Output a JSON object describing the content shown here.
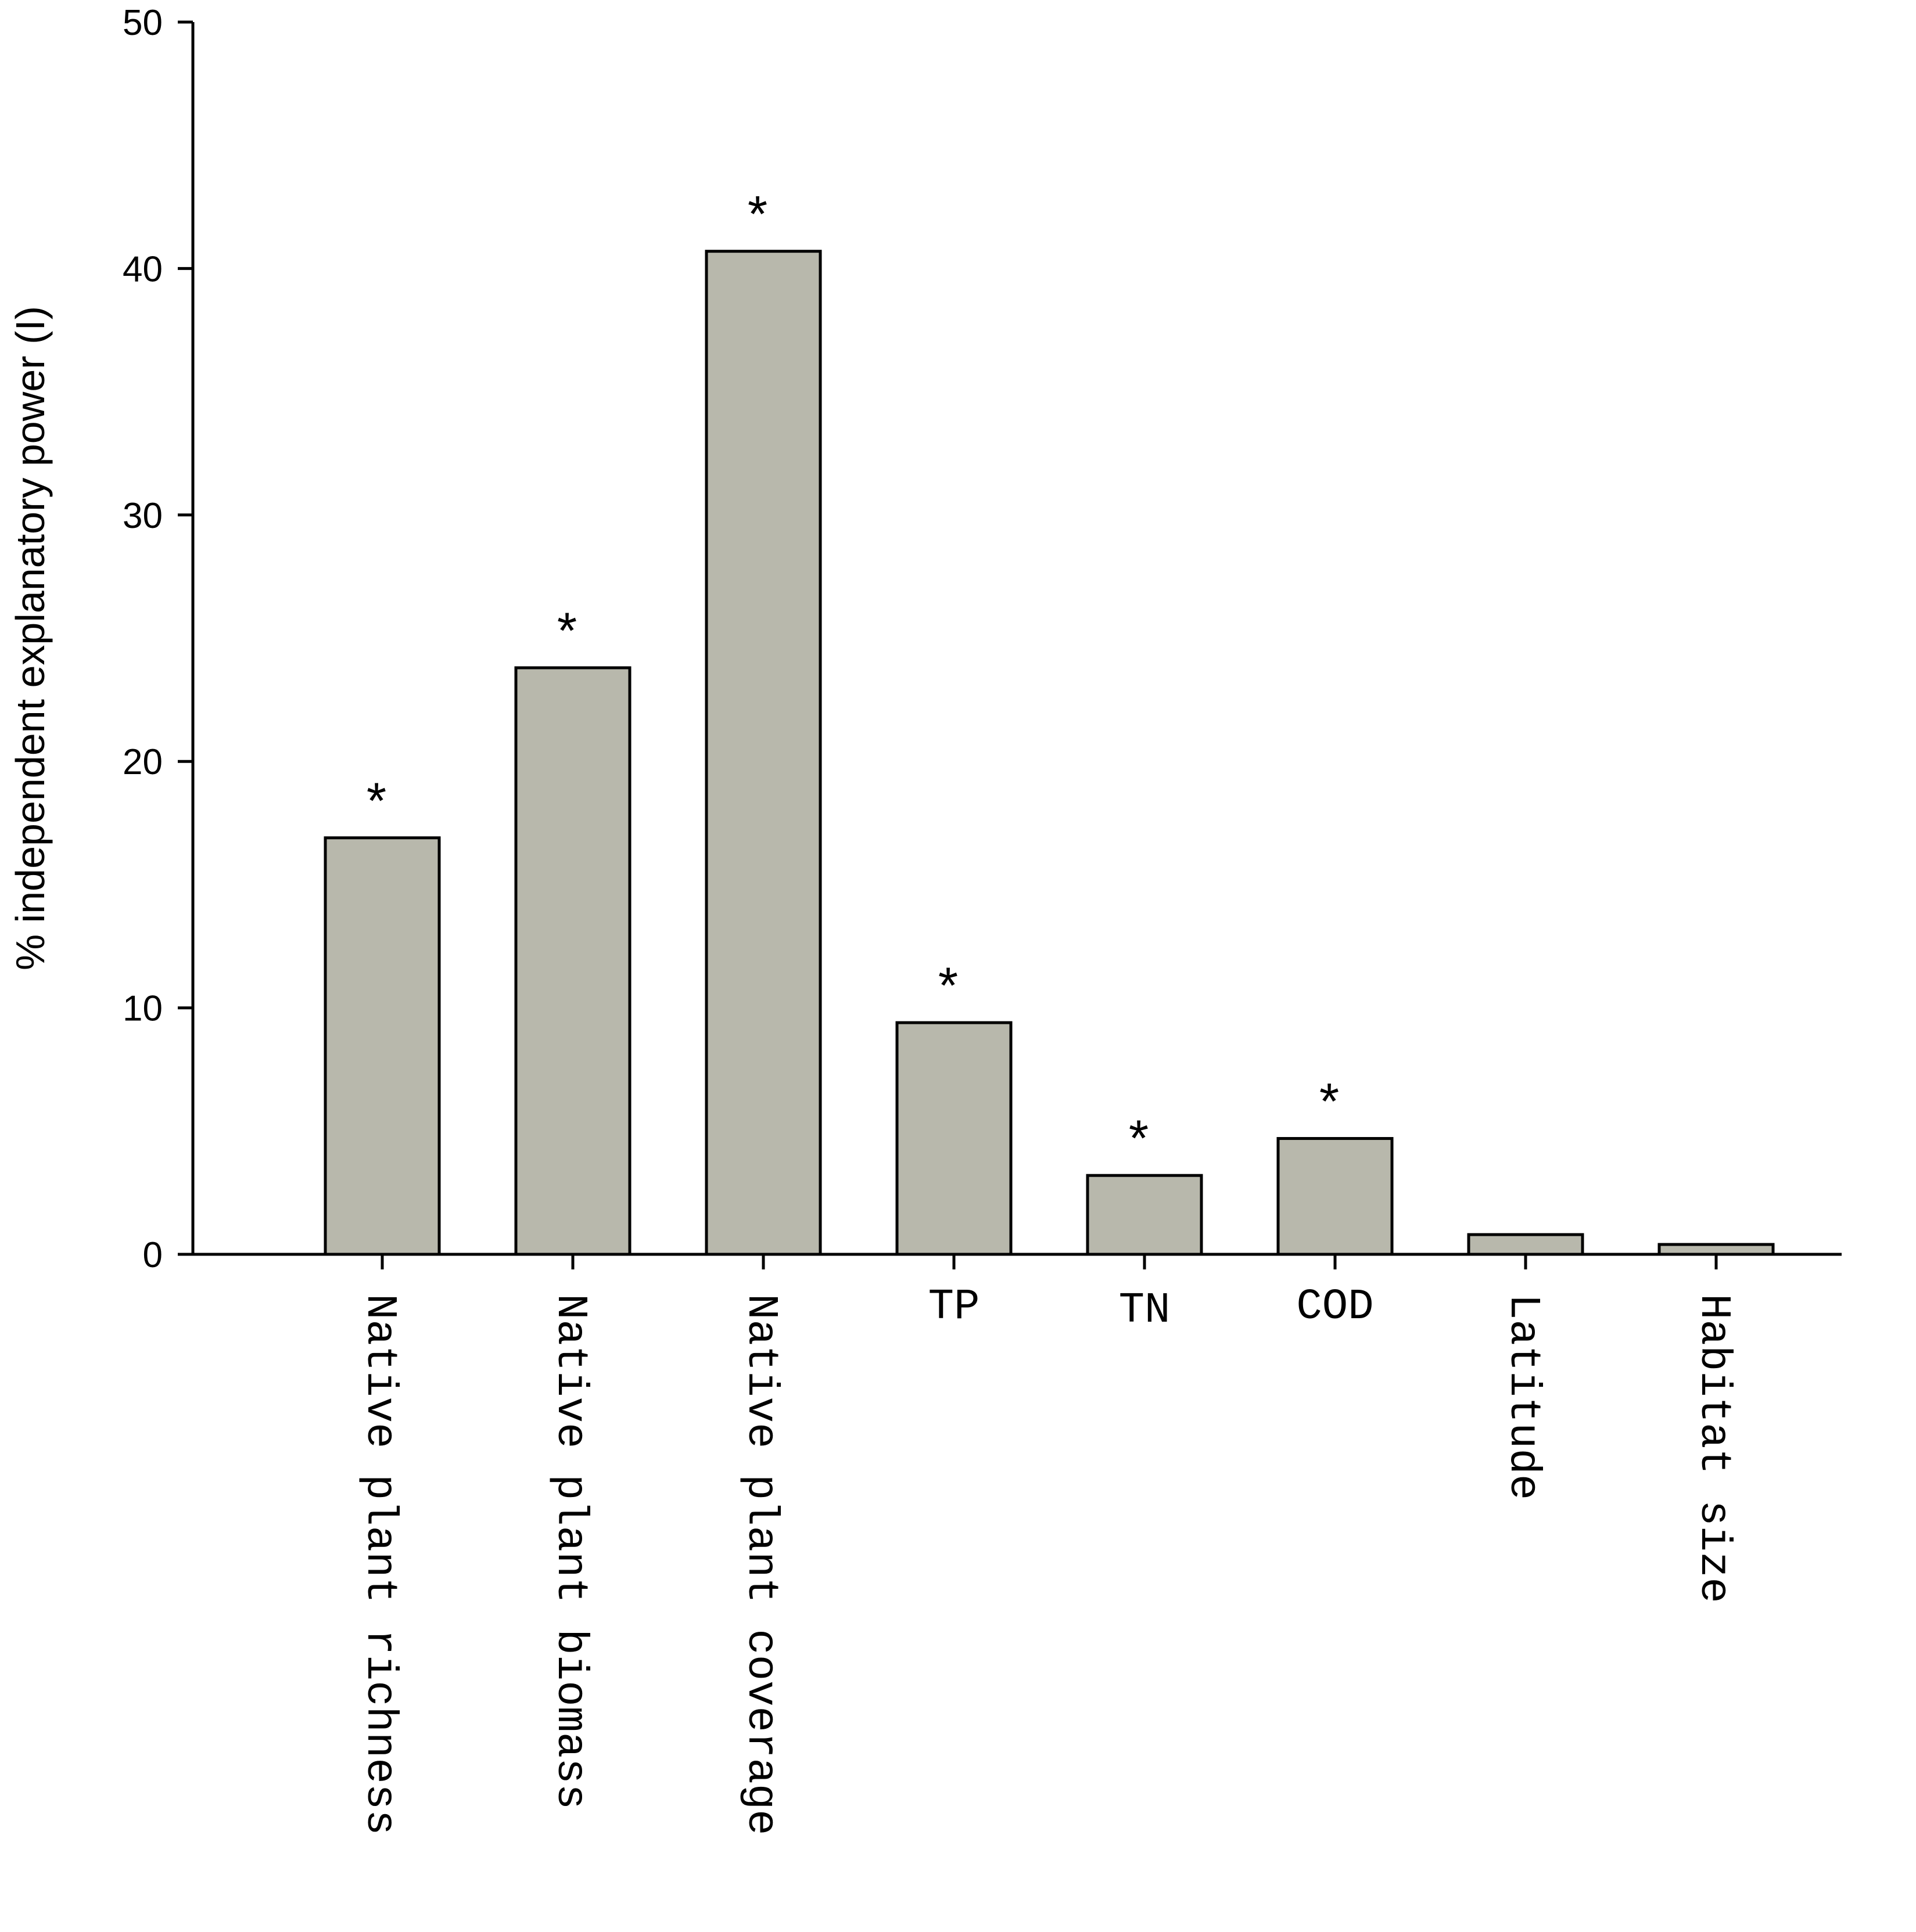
{
  "chart_data": {
    "type": "bar",
    "ylabel": "% independent explanatory power (I)",
    "xlabel": "",
    "ylim": [
      0,
      50
    ],
    "yticks": [
      "0",
      "10",
      "20",
      "30",
      "40",
      "50"
    ],
    "categories": [
      "Native plant richness",
      "Native plant biomass",
      "Native plant coverage",
      "TP",
      "TN",
      "COD",
      "Latitude",
      "Habitat size"
    ],
    "values": [
      16.9,
      23.8,
      40.7,
      9.4,
      3.2,
      4.7,
      0.8,
      0.4
    ],
    "annotations": [
      "*",
      "*",
      "*",
      "*",
      "*",
      "*",
      "",
      ""
    ],
    "bar_color": "#b8b8ac",
    "grid": false,
    "legend": "none"
  }
}
